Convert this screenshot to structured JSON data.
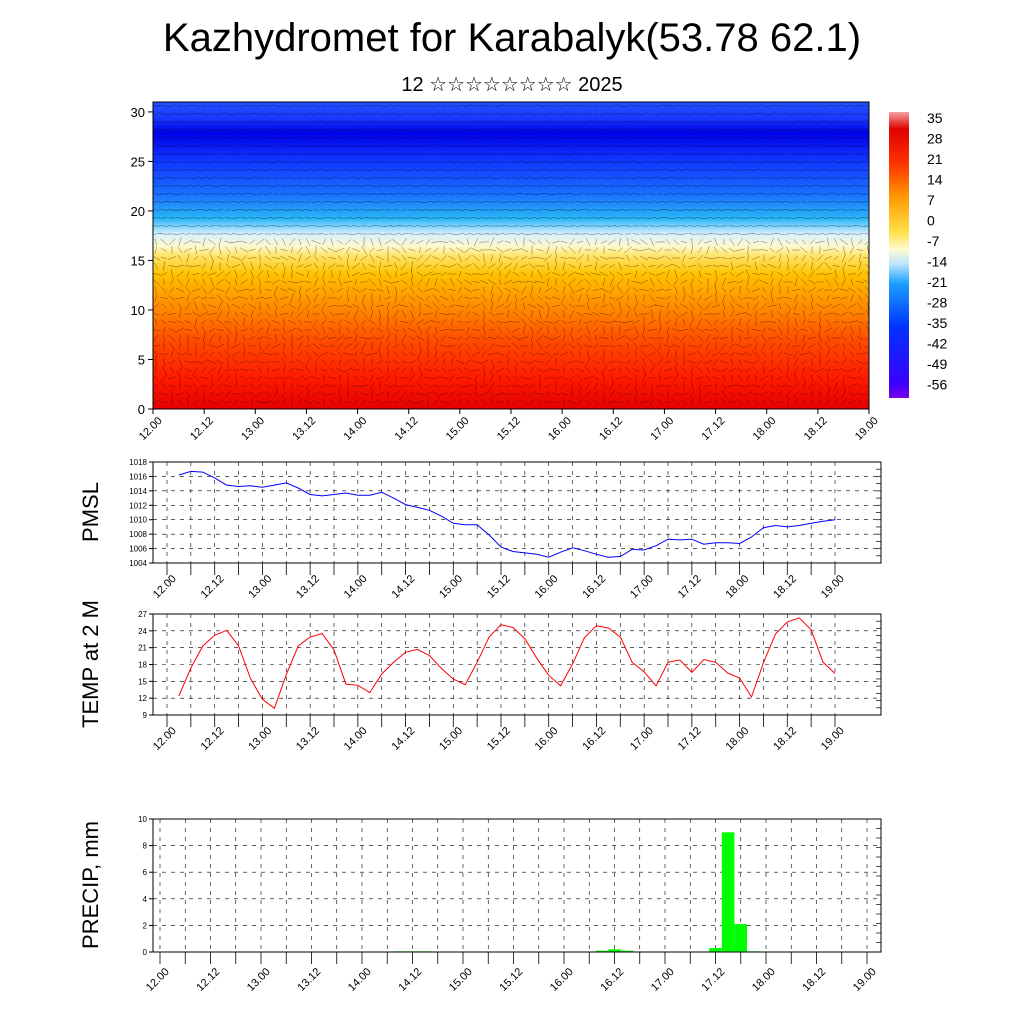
{
  "header": {
    "title": "Kazhydromet for Karabalyk(53.78 62.1)",
    "subtitle": "12 ☆☆☆☆☆☆☆☆ 2025"
  },
  "time_ticks": [
    "12.00",
    "12.12",
    "13.00",
    "13.12",
    "14.00",
    "14.12",
    "15.00",
    "15.12",
    "16.00",
    "16.12",
    "17.00",
    "17.12",
    "18.00",
    "18.12",
    "19.00"
  ],
  "chart_data": [
    {
      "type": "heatmap",
      "title": "",
      "ylim": [
        0,
        31
      ],
      "y_ticks": [
        0,
        5,
        10,
        15,
        20,
        25,
        30
      ],
      "colorbar_labels": [
        "35",
        "28",
        "21",
        "14",
        "7",
        "0",
        "-7",
        "-14",
        "-21",
        "-28",
        "-35",
        "-42",
        "-49",
        "-56"
      ],
      "colors": [
        "#ff0000",
        "#ff9b00",
        "#ffe56a",
        "#ffffff",
        "#29b6f6",
        "#0000ff",
        "#7a00e6"
      ]
    },
    {
      "type": "line",
      "ylabel": "PMSL",
      "ylim": [
        1004,
        1018
      ],
      "y_ticks": [
        1004,
        1006,
        1008,
        1010,
        1012,
        1014,
        1016,
        1018
      ],
      "color": "#0000ff",
      "x": [
        0.5,
        1,
        1.5,
        2,
        2.5,
        3,
        3.5,
        4,
        4.5,
        5,
        5.5,
        6,
        6.5,
        7,
        7.5,
        8,
        8.5,
        9,
        9.5,
        10,
        10.5,
        11,
        11.5,
        12,
        12.5,
        13,
        13.5,
        14,
        14.5,
        15,
        15.5,
        16,
        16.5,
        17,
        17.5,
        18,
        18.5,
        19,
        19.5,
        20,
        20.5,
        21,
        21.5,
        22,
        22.5,
        23,
        23.5,
        24,
        24.5,
        25,
        25.5,
        26,
        26.5,
        27,
        27.5,
        28
      ],
      "values": [
        1016.2,
        1016.7,
        1016.6,
        1015.8,
        1014.8,
        1014.6,
        1014.7,
        1014.5,
        1014.8,
        1015.1,
        1014.4,
        1013.5,
        1013.3,
        1013.5,
        1013.7,
        1013.4,
        1013.4,
        1013.8,
        1013.0,
        1012.1,
        1011.7,
        1011.3,
        1010.5,
        1009.5,
        1009.3,
        1009.3,
        1007.9,
        1006.2,
        1005.6,
        1005.4,
        1005.2,
        1004.8,
        1005.5,
        1006.1,
        1005.7,
        1005.2,
        1004.8,
        1004.9,
        1005.9,
        1005.8,
        1006.4,
        1007.3,
        1007.2,
        1007.3,
        1006.6,
        1006.8,
        1006.8,
        1006.7,
        1007.6,
        1008.9,
        1009.2,
        1009.0,
        1009.2,
        1009.5,
        1009.8,
        1010.0
      ]
    },
    {
      "type": "line",
      "ylabel": "TEMP at 2 M",
      "ylim": [
        9,
        27
      ],
      "y_ticks": [
        9,
        12,
        15,
        18,
        21,
        24,
        27
      ],
      "color": "#ff0000",
      "x": [
        0.5,
        1,
        1.5,
        2,
        2.5,
        3,
        3.5,
        4,
        4.5,
        5,
        5.5,
        6,
        6.5,
        7,
        7.5,
        8,
        8.5,
        9,
        9.5,
        10,
        10.5,
        11,
        11.5,
        12,
        12.5,
        13,
        13.5,
        14,
        14.5,
        15,
        15.5,
        16,
        16.5,
        17,
        17.5,
        18,
        18.5,
        19,
        19.5,
        20,
        20.5,
        21,
        21.5,
        22,
        22.5,
        23,
        23.5,
        24,
        24.5,
        25,
        25.5,
        26,
        26.5,
        27,
        27.5,
        28
      ],
      "values": [
        12.4,
        17.4,
        21.3,
        23.2,
        24.1,
        21.3,
        15.5,
        11.8,
        10.2,
        16.2,
        21.3,
        22.9,
        23.5,
        20.6,
        14.5,
        14.3,
        13.0,
        16.3,
        18.4,
        20.2,
        20.7,
        19.6,
        17.3,
        15.4,
        14.4,
        18.4,
        22.9,
        25.1,
        24.6,
        22.6,
        19.1,
        16.1,
        14.2,
        18.1,
        22.8,
        24.9,
        24.5,
        22.9,
        18.4,
        16.7,
        14.2,
        18.4,
        18.8,
        16.6,
        18.9,
        18.4,
        16.5,
        15.6,
        12.2,
        18.3,
        23.4,
        25.6,
        26.3,
        24.2,
        18.4,
        16.4
      ]
    },
    {
      "type": "bar",
      "ylabel": "PRECIP, mm",
      "ylim": [
        0,
        10
      ],
      "y_ticks": [
        0,
        2,
        4,
        6,
        8,
        10
      ],
      "color": "#00ff00",
      "x": [
        9.5,
        10,
        10.5,
        17.5,
        18,
        18.5,
        22,
        22.5,
        23,
        23.5
      ],
      "values": [
        0.05,
        0.05,
        0.05,
        0.1,
        0.2,
        0.1,
        0.3,
        9.0,
        2.1,
        0.05
      ]
    }
  ]
}
